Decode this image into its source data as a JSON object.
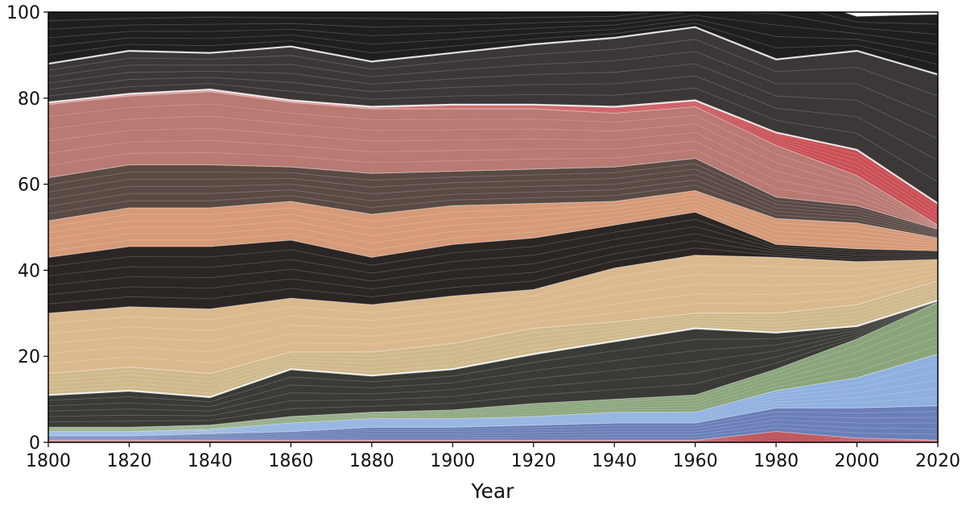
{
  "chart_data": {
    "type": "area",
    "stacked": true,
    "title": "",
    "xlabel": "Year",
    "ylabel": "",
    "xlim": [
      1800,
      2020
    ],
    "ylim": [
      0,
      100
    ],
    "xticks": [
      1800,
      1820,
      1840,
      1860,
      1880,
      1900,
      1920,
      1940,
      1960,
      1980,
      2000,
      2020
    ],
    "yticks": [
      0,
      20,
      40,
      60,
      80,
      100
    ],
    "grid": false,
    "legend": "none",
    "x": [
      1800,
      1820,
      1840,
      1860,
      1880,
      1900,
      1920,
      1940,
      1960,
      1980,
      2000,
      2020
    ],
    "series": [
      {
        "color": "#b84a52",
        "values": [
          0.5,
          0.5,
          0.5,
          0.5,
          0.5,
          0.5,
          0.5,
          0.5,
          0.5,
          2.5,
          1.0,
          0.5
        ]
      },
      {
        "color": "#6a7fb8",
        "values": [
          1.0,
          1.0,
          1.5,
          2.0,
          3.0,
          3.0,
          3.5,
          4.0,
          4.0,
          5.5,
          7.0,
          8.0
        ]
      },
      {
        "color": "#8fb0e0",
        "values": [
          1.0,
          1.0,
          1.0,
          2.0,
          2.0,
          2.0,
          2.0,
          2.5,
          2.5,
          4.0,
          7.0,
          12.0
        ]
      },
      {
        "color": "#8aa57c",
        "values": [
          1.0,
          1.0,
          1.0,
          1.5,
          1.5,
          2.0,
          3.0,
          3.0,
          4.0,
          5.0,
          9.0,
          12.0
        ]
      },
      {
        "color": "#3a3a36",
        "values": [
          7.5,
          8.5,
          6.5,
          11.0,
          8.5,
          9.5,
          11.5,
          13.5,
          15.5,
          8.5,
          3.0,
          0.5
        ]
      },
      {
        "color": "#cfb98c",
        "values": [
          5.0,
          5.5,
          5.5,
          4.0,
          5.5,
          6.0,
          6.0,
          4.5,
          3.5,
          4.5,
          5.0,
          4.5
        ]
      },
      {
        "color": "#dbb98e",
        "values": [
          14.0,
          14.0,
          15.0,
          12.5,
          11.0,
          11.0,
          9.0,
          12.5,
          13.5,
          13.0,
          10.0,
          5.0
        ]
      },
      {
        "color": "#2b2523",
        "values": [
          13.0,
          14.0,
          14.5,
          13.5,
          11.0,
          12.0,
          12.0,
          10.0,
          10.0,
          3.0,
          3.0,
          2.0
        ]
      },
      {
        "color": "#d69a78",
        "values": [
          8.5,
          9.0,
          9.0,
          9.0,
          10.0,
          9.0,
          8.0,
          5.5,
          5.0,
          6.0,
          6.0,
          3.0
        ]
      },
      {
        "color": "#5a4a44",
        "values": [
          10.0,
          10.0,
          10.0,
          8.0,
          9.5,
          8.0,
          8.0,
          8.0,
          7.5,
          5.0,
          4.0,
          2.0
        ]
      },
      {
        "color": "#b87a72",
        "values": [
          17.0,
          16.0,
          17.0,
          15.0,
          15.0,
          14.5,
          14.0,
          12.5,
          12.0,
          12.0,
          7.0,
          1.0
        ]
      },
      {
        "color": "#c94f55",
        "values": [
          0.5,
          0.5,
          0.5,
          0.5,
          0.5,
          1.0,
          1.0,
          1.5,
          1.5,
          3.0,
          6.0,
          5.0
        ]
      },
      {
        "color": "#3c3838",
        "values": [
          9.0,
          10.0,
          8.5,
          12.5,
          10.5,
          12.0,
          14.0,
          16.0,
          17.0,
          17.0,
          23.0,
          30.0
        ]
      },
      {
        "color": "#1f1f1f",
        "values": [
          12.0,
          9.0,
          10.0,
          8.0,
          12.0,
          9.5,
          7.5,
          6.0,
          5.5,
          16.0,
          8.0,
          14.0
        ]
      }
    ]
  }
}
